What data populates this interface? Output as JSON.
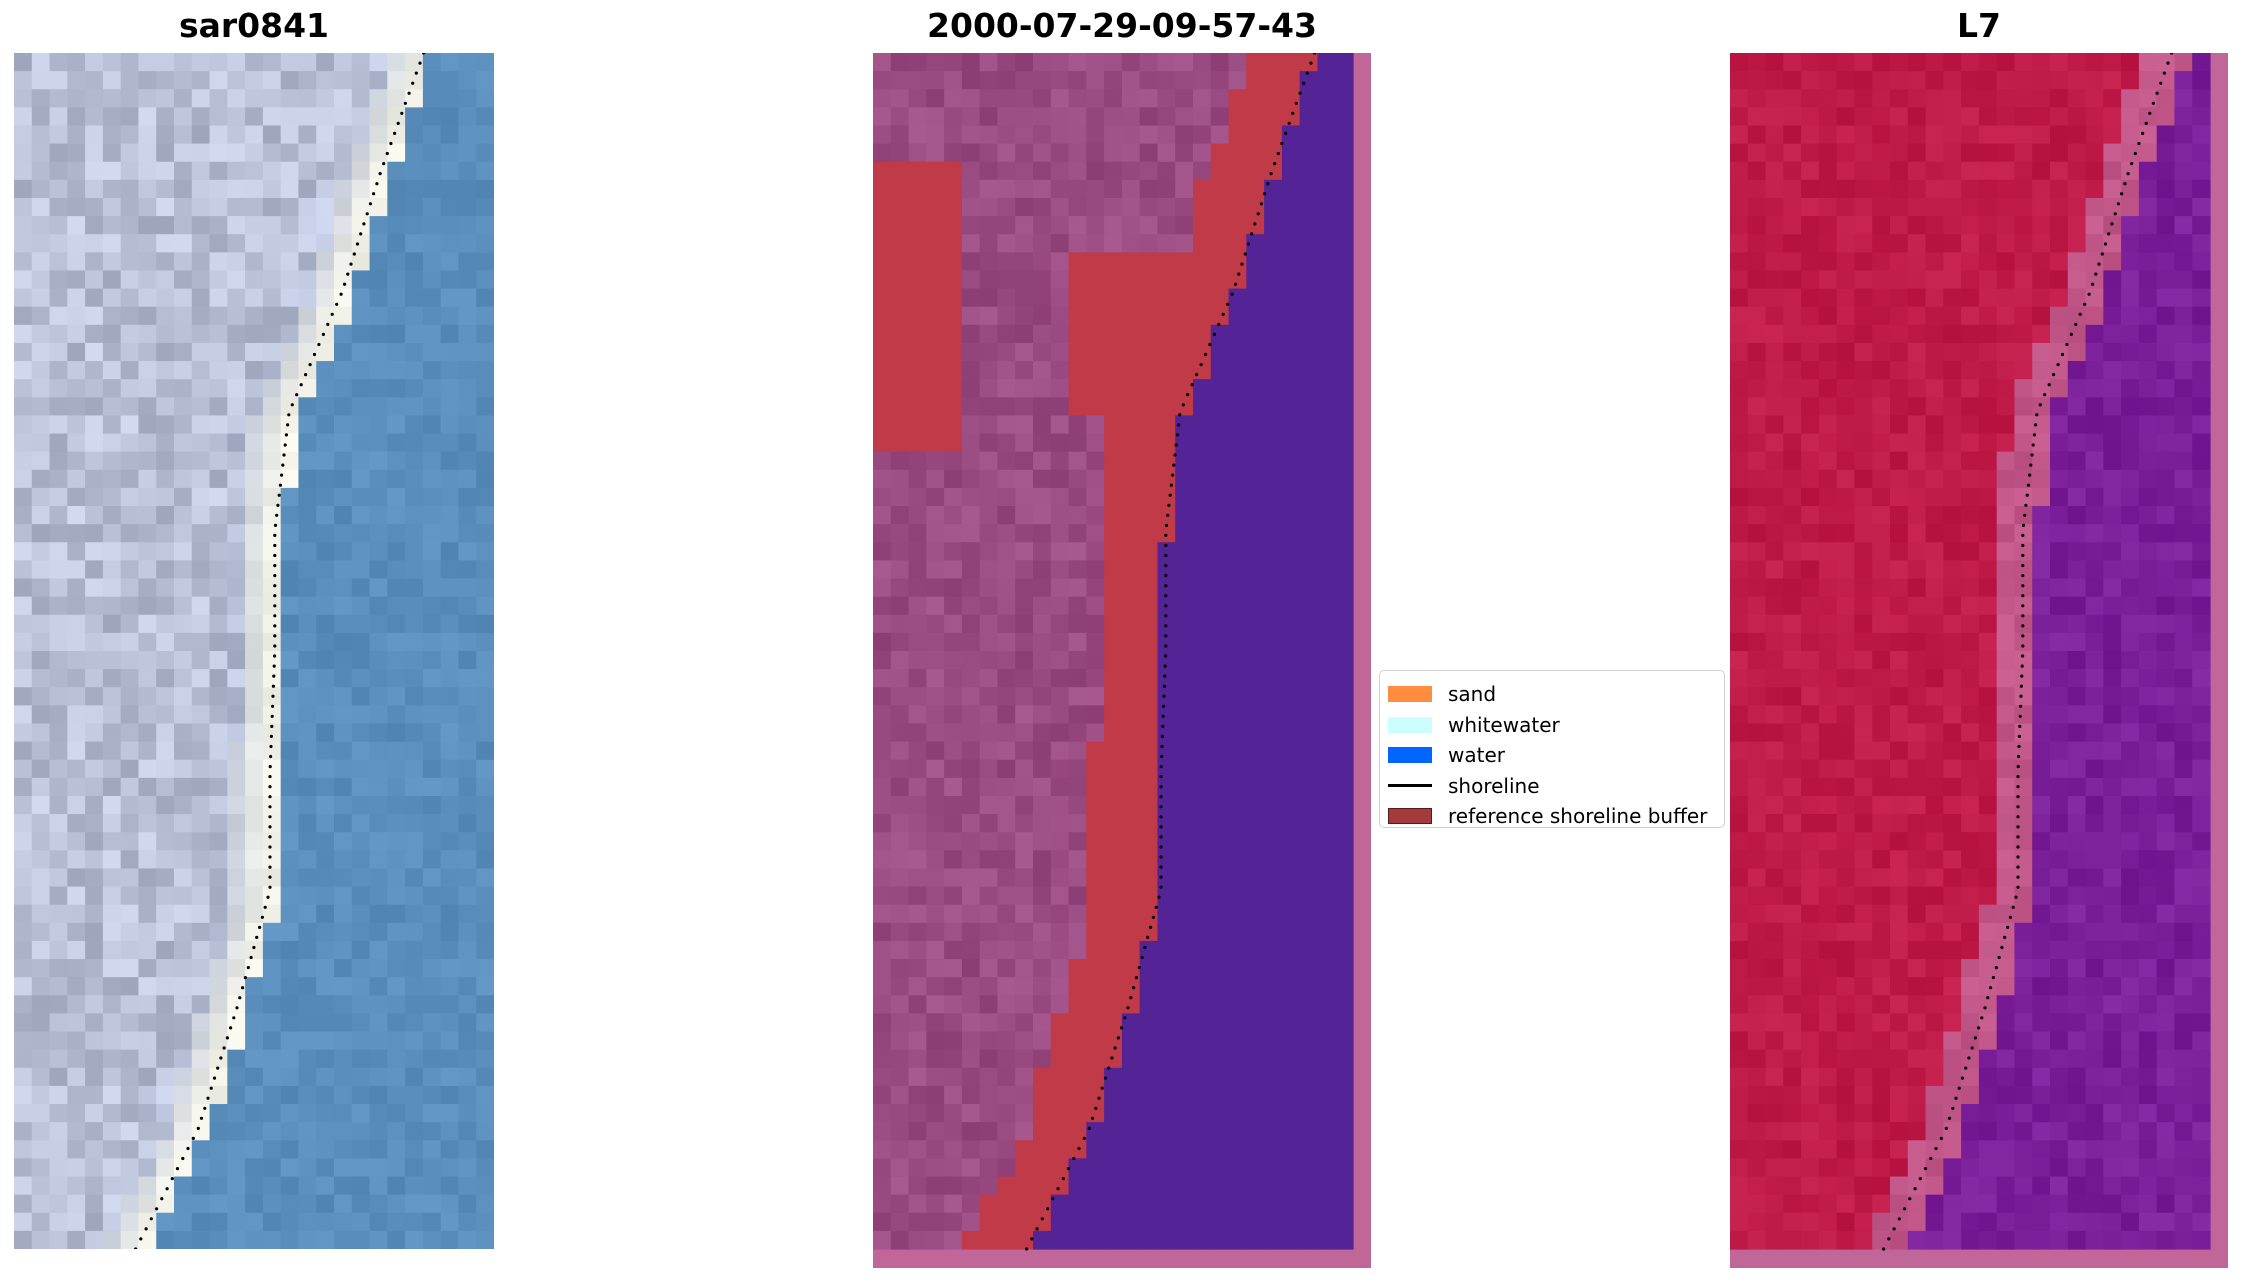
{
  "panels": [
    {
      "title": "sar0841"
    },
    {
      "title": "2000-07-29-09-57-43"
    },
    {
      "title": "L7"
    }
  ],
  "legend": {
    "items": [
      {
        "label": "sand",
        "color": "#ff8c3f",
        "kind": "patch"
      },
      {
        "label": "whitewater",
        "color": "#ccffff",
        "kind": "patch"
      },
      {
        "label": "water",
        "color": "#0066ff",
        "kind": "patch"
      },
      {
        "label": "shoreline",
        "color": "#000000",
        "kind": "line"
      },
      {
        "label": "reference shoreline buffer",
        "color": "#a33b3b",
        "kind": "patch"
      }
    ]
  },
  "colors": {
    "rgb_water": "#5a8fbd",
    "rgb_land": "#b7c0d6",
    "rgb_beach": "#f2f2e8",
    "class_water": "#542496",
    "class_land": "#9a4b82",
    "class_buffer": "#c03a48",
    "class_frame": "#c06698",
    "l7_land": "#c01a48",
    "l7_water": "#7a1e9a",
    "l7_frame": "#c06698",
    "shoreline": "#000000"
  }
}
